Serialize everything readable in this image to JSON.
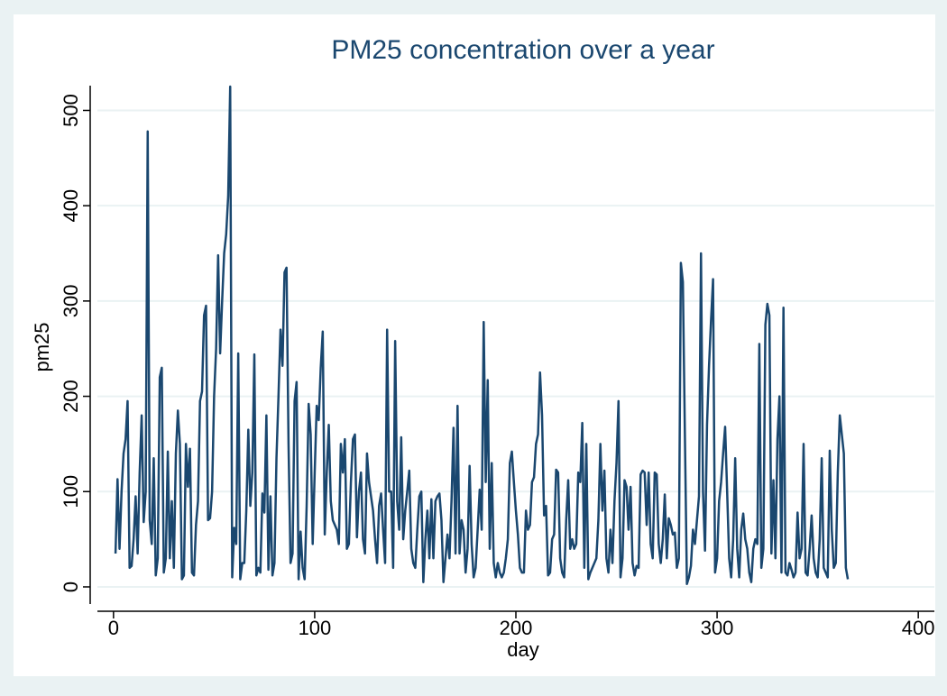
{
  "chart_data": {
    "type": "line",
    "title": "PM25 concentration over a year",
    "x_label": "day",
    "y_label": "pm25",
    "xlim": [
      -8,
      408
    ],
    "ylim": [
      -18,
      526
    ],
    "xticks": [
      0,
      100,
      200,
      300,
      400
    ],
    "yticks": [
      0,
      100,
      200,
      300,
      400,
      500
    ],
    "grid": true,
    "series": [
      {
        "name": "pm25",
        "color": "#1a476f",
        "x": [
          1,
          2,
          3,
          4,
          5,
          6,
          7,
          8,
          9,
          10,
          11,
          12,
          13,
          14,
          15,
          16,
          17,
          18,
          19,
          20,
          21,
          22,
          23,
          24,
          25,
          26,
          27,
          28,
          29,
          30,
          31,
          32,
          33,
          34,
          35,
          36,
          37,
          38,
          39,
          40,
          41,
          42,
          43,
          44,
          45,
          46,
          47,
          48,
          49,
          50,
          51,
          52,
          53,
          54,
          55,
          56,
          57,
          58,
          59,
          60,
          61,
          62,
          63,
          64,
          65,
          66,
          67,
          68,
          69,
          70,
          71,
          72,
          73,
          74,
          75,
          76,
          77,
          78,
          79,
          80,
          81,
          82,
          83,
          84,
          85,
          86,
          87,
          88,
          89,
          90,
          91,
          92,
          93,
          94,
          95,
          96,
          97,
          98,
          99,
          100,
          101,
          102,
          103,
          104,
          105,
          106,
          107,
          108,
          109,
          110,
          111,
          112,
          113,
          114,
          115,
          116,
          117,
          118,
          119,
          120,
          121,
          122,
          123,
          124,
          125,
          126,
          127,
          128,
          129,
          130,
          131,
          132,
          133,
          134,
          135,
          136,
          137,
          138,
          139,
          140,
          141,
          142,
          143,
          144,
          145,
          146,
          147,
          148,
          149,
          150,
          151,
          152,
          153,
          154,
          155,
          156,
          157,
          158,
          159,
          160,
          161,
          162,
          163,
          164,
          165,
          166,
          167,
          168,
          169,
          170,
          171,
          172,
          173,
          174,
          175,
          176,
          177,
          178,
          179,
          180,
          181,
          182,
          183,
          184,
          185,
          186,
          187,
          188,
          189,
          190,
          191,
          192,
          193,
          194,
          195,
          196,
          197,
          198,
          199,
          200,
          201,
          202,
          203,
          204,
          205,
          206,
          207,
          208,
          209,
          210,
          211,
          212,
          213,
          214,
          215,
          216,
          217,
          218,
          219,
          220,
          221,
          222,
          223,
          224,
          225,
          226,
          227,
          228,
          229,
          230,
          231,
          232,
          233,
          234,
          235,
          236,
          237,
          238,
          239,
          240,
          241,
          242,
          243,
          244,
          245,
          246,
          247,
          248,
          249,
          250,
          251,
          252,
          253,
          254,
          255,
          256,
          257,
          258,
          259,
          260,
          261,
          262,
          263,
          264,
          265,
          266,
          267,
          268,
          269,
          270,
          271,
          272,
          273,
          274,
          275,
          276,
          277,
          278,
          279,
          280,
          281,
          282,
          283,
          284,
          285,
          286,
          287,
          288,
          289,
          290,
          291,
          292,
          293,
          294,
          295,
          296,
          297,
          298,
          299,
          300,
          301,
          302,
          303,
          304,
          305,
          306,
          307,
          308,
          309,
          310,
          311,
          312,
          313,
          314,
          315,
          316,
          317,
          318,
          319,
          320,
          321,
          322,
          323,
          324,
          325,
          326,
          327,
          328,
          329,
          330,
          331,
          332,
          333,
          334,
          335,
          336,
          337,
          338,
          339,
          340,
          341,
          342,
          343,
          344,
          345,
          346,
          347,
          348,
          349,
          350,
          351,
          352,
          353,
          354,
          355,
          356,
          357,
          358,
          359,
          360,
          361,
          362,
          363,
          364,
          365
        ],
        "values": [
          35,
          113,
          40,
          100,
          140,
          155,
          195,
          20,
          22,
          50,
          95,
          35,
          120,
          180,
          68,
          100,
          478,
          70,
          45,
          135,
          12,
          30,
          220,
          230,
          15,
          30,
          142,
          30,
          90,
          20,
          140,
          185,
          150,
          8,
          12,
          150,
          105,
          145,
          15,
          12,
          65,
          90,
          195,
          205,
          285,
          295,
          70,
          72,
          100,
          200,
          250,
          348,
          245,
          300,
          350,
          370,
          410,
          525,
          10,
          62,
          45,
          245,
          8,
          25,
          25,
          80,
          165,
          85,
          120,
          244,
          12,
          20,
          15,
          98,
          78,
          180,
          18,
          95,
          12,
          25,
          135,
          200,
          270,
          232,
          330,
          335,
          150,
          25,
          35,
          195,
          215,
          8,
          58,
          20,
          8,
          85,
          192,
          160,
          45,
          120,
          190,
          175,
          230,
          268,
          55,
          120,
          170,
          90,
          70,
          65,
          60,
          45,
          150,
          120,
          155,
          40,
          45,
          110,
          155,
          160,
          52,
          100,
          120,
          50,
          35,
          140,
          110,
          95,
          80,
          50,
          25,
          85,
          98,
          60,
          25,
          270,
          100,
          100,
          20,
          258,
          90,
          60,
          157,
          50,
          80,
          100,
          122,
          40,
          25,
          20,
          60,
          95,
          100,
          5,
          50,
          80,
          30,
          92,
          30,
          90,
          95,
          98,
          70,
          5,
          30,
          55,
          30,
          90,
          167,
          35,
          190,
          35,
          70,
          60,
          15,
          40,
          127,
          45,
          10,
          20,
          60,
          102,
          60,
          278,
          110,
          217,
          40,
          130,
          25,
          10,
          25,
          15,
          10,
          15,
          30,
          50,
          130,
          142,
          110,
          80,
          55,
          20,
          15,
          15,
          80,
          60,
          65,
          110,
          115,
          150,
          160,
          225,
          180,
          75,
          85,
          12,
          15,
          50,
          55,
          123,
          120,
          30,
          15,
          10,
          70,
          112,
          40,
          50,
          40,
          45,
          120,
          110,
          172,
          20,
          150,
          8,
          15,
          20,
          25,
          30,
          70,
          150,
          80,
          122,
          30,
          15,
          60,
          25,
          90,
          130,
          195,
          10,
          30,
          112,
          105,
          60,
          105,
          25,
          12,
          22,
          20,
          118,
          122,
          120,
          65,
          120,
          45,
          30,
          120,
          118,
          45,
          25,
          50,
          97,
          30,
          72,
          65,
          55,
          57,
          20,
          30,
          340,
          320,
          160,
          3,
          10,
          22,
          60,
          45,
          70,
          95,
          350,
          100,
          38,
          170,
          232,
          280,
          323,
          15,
          30,
          90,
          110,
          140,
          168,
          100,
          30,
          10,
          50,
          135,
          40,
          10,
          60,
          77,
          50,
          40,
          15,
          5,
          40,
          50,
          45,
          255,
          20,
          40,
          275,
          297,
          285,
          35,
          112,
          30,
          155,
          200,
          15,
          293,
          15,
          12,
          25,
          18,
          10,
          15,
          78,
          30,
          40,
          150,
          15,
          12,
          40,
          75,
          30,
          15,
          10,
          50,
          135,
          20,
          15,
          10,
          143,
          60,
          20,
          25,
          120,
          180,
          160,
          140,
          20,
          8
        ]
      }
    ]
  }
}
